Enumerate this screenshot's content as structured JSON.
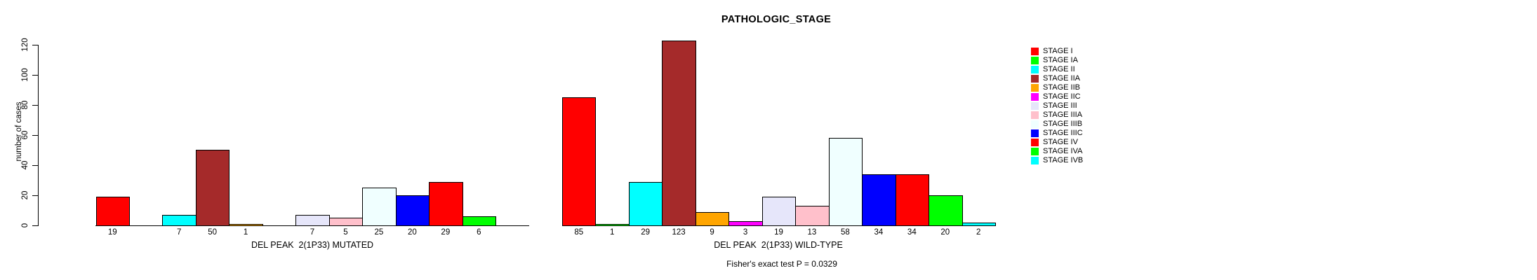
{
  "title": "PATHOLOGIC_STAGE",
  "chart_data": {
    "type": "bar",
    "title": "PATHOLOGIC_STAGE",
    "xlabel": "",
    "ylabel": "number of cases",
    "ylim": [
      0,
      120
    ],
    "yticks": [
      0,
      20,
      40,
      60,
      80,
      100,
      120
    ],
    "grid": false,
    "legend_position": "right",
    "categories": [
      "STAGE I",
      "STAGE IA",
      "STAGE II",
      "STAGE IIA",
      "STAGE IIB",
      "STAGE IIC",
      "STAGE III",
      "STAGE IIIA",
      "STAGE IIIB",
      "STAGE IIIC",
      "STAGE IV",
      "STAGE IVA",
      "STAGE IVB"
    ],
    "colors": [
      "#FF0000",
      "#00FF00",
      "#00FFFF",
      "#A52A2A",
      "#FFA500",
      "#FF00FF",
      "#E6E6FA",
      "#FFC0CB",
      "#F0FFFF",
      "#0000FF",
      "#FF0000",
      "#00FF00",
      "#00FFFF"
    ],
    "bar_border_color": "#000000",
    "groups": [
      {
        "label": "DEL PEAK  2(1P33) MUTATED",
        "values": [
          19,
          0,
          7,
          50,
          1,
          0,
          7,
          5,
          25,
          20,
          29,
          6,
          0
        ]
      },
      {
        "label": "DEL PEAK  2(1P33) WILD-TYPE",
        "values": [
          85,
          1,
          29,
          123,
          9,
          3,
          19,
          13,
          58,
          34,
          34,
          20,
          2
        ]
      }
    ],
    "bar_value_labels_shown_for_nonzero_only": true,
    "annotation": "Fisher's exact test P = 0.0329"
  },
  "legend": {
    "items": [
      {
        "label": "STAGE I",
        "color": "#FF0000"
      },
      {
        "label": "STAGE IA",
        "color": "#00FF00"
      },
      {
        "label": "STAGE II",
        "color": "#00FFFF"
      },
      {
        "label": "STAGE IIA",
        "color": "#A52A2A"
      },
      {
        "label": "STAGE IIB",
        "color": "#FFA500"
      },
      {
        "label": "STAGE IIC",
        "color": "#FF00FF"
      },
      {
        "label": "STAGE III",
        "color": "#E6E6FA"
      },
      {
        "label": "STAGE IIIA",
        "color": "#FFC0CB"
      },
      {
        "label": "STAGE IIIB",
        "color": "#F0FFFF"
      },
      {
        "label": "STAGE IIIC",
        "color": "#0000FF"
      },
      {
        "label": "STAGE IV",
        "color": "#FF0000"
      },
      {
        "label": "STAGE IVA",
        "color": "#00FF00"
      },
      {
        "label": "STAGE IVB",
        "color": "#00FFFF"
      }
    ]
  }
}
